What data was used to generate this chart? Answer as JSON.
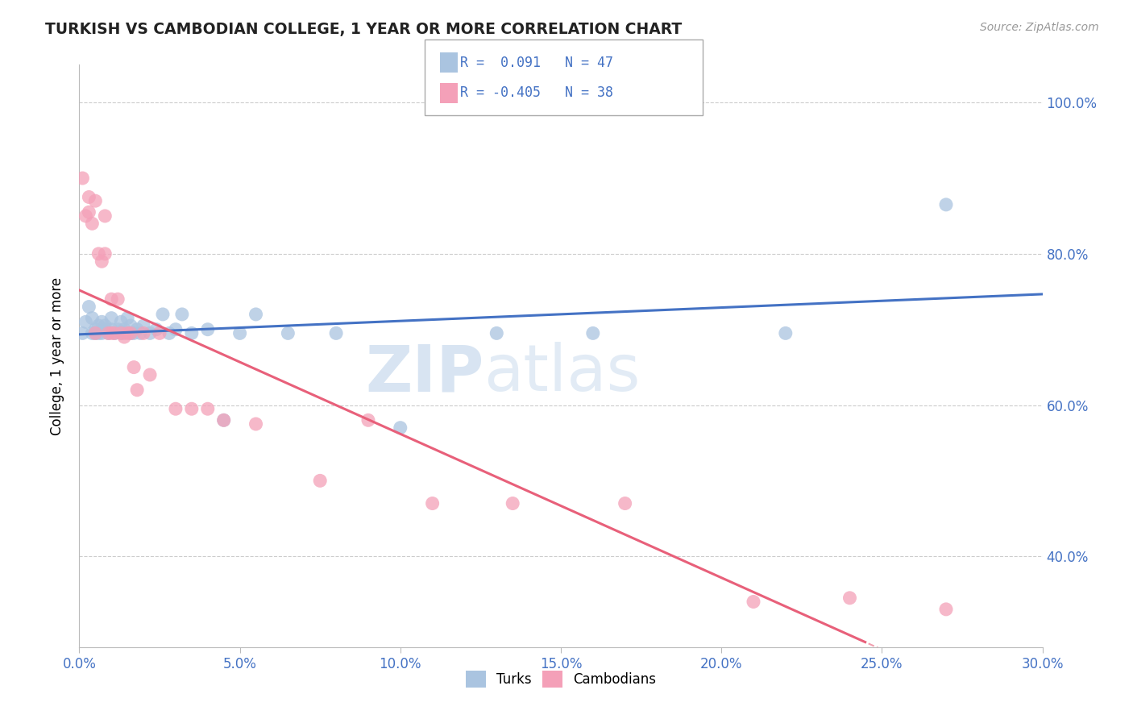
{
  "title": "TURKISH VS CAMBODIAN COLLEGE, 1 YEAR OR MORE CORRELATION CHART",
  "source": "Source: ZipAtlas.com",
  "xlim": [
    0.0,
    0.3
  ],
  "ylim": [
    0.28,
    1.05
  ],
  "turks_R": 0.091,
  "turks_N": 47,
  "cambodians_R": -0.405,
  "cambodians_N": 38,
  "turks_color": "#aac4e0",
  "cambodians_color": "#f4a0b8",
  "turks_line_color": "#4472c4",
  "cambodians_line_color": "#e8607a",
  "turks_scatter_x": [
    0.001,
    0.002,
    0.003,
    0.004,
    0.004,
    0.005,
    0.005,
    0.006,
    0.006,
    0.007,
    0.007,
    0.008,
    0.008,
    0.009,
    0.01,
    0.01,
    0.011,
    0.012,
    0.013,
    0.013,
    0.014,
    0.014,
    0.015,
    0.016,
    0.016,
    0.017,
    0.018,
    0.019,
    0.02,
    0.022,
    0.024,
    0.026,
    0.028,
    0.03,
    0.032,
    0.035,
    0.04,
    0.045,
    0.05,
    0.055,
    0.065,
    0.08,
    0.1,
    0.13,
    0.16,
    0.22,
    0.27
  ],
  "turks_scatter_y": [
    0.695,
    0.71,
    0.73,
    0.695,
    0.715,
    0.695,
    0.7,
    0.695,
    0.705,
    0.71,
    0.695,
    0.7,
    0.705,
    0.695,
    0.715,
    0.7,
    0.695,
    0.7,
    0.695,
    0.71,
    0.695,
    0.7,
    0.715,
    0.695,
    0.705,
    0.695,
    0.7,
    0.695,
    0.705,
    0.695,
    0.7,
    0.72,
    0.695,
    0.7,
    0.72,
    0.695,
    0.7,
    0.58,
    0.695,
    0.72,
    0.695,
    0.695,
    0.57,
    0.695,
    0.695,
    0.695,
    0.865
  ],
  "cambodians_scatter_x": [
    0.001,
    0.002,
    0.003,
    0.003,
    0.004,
    0.005,
    0.005,
    0.006,
    0.007,
    0.008,
    0.008,
    0.009,
    0.01,
    0.01,
    0.011,
    0.012,
    0.013,
    0.014,
    0.015,
    0.016,
    0.017,
    0.018,
    0.02,
    0.022,
    0.025,
    0.03,
    0.035,
    0.04,
    0.045,
    0.055,
    0.075,
    0.09,
    0.11,
    0.135,
    0.17,
    0.21,
    0.24,
    0.27
  ],
  "cambodians_scatter_y": [
    0.9,
    0.85,
    0.855,
    0.875,
    0.84,
    0.87,
    0.695,
    0.8,
    0.79,
    0.85,
    0.8,
    0.695,
    0.695,
    0.74,
    0.695,
    0.74,
    0.695,
    0.69,
    0.695,
    0.695,
    0.65,
    0.62,
    0.695,
    0.64,
    0.695,
    0.595,
    0.595,
    0.595,
    0.58,
    0.575,
    0.5,
    0.58,
    0.47,
    0.47,
    0.47,
    0.34,
    0.345,
    0.33
  ]
}
